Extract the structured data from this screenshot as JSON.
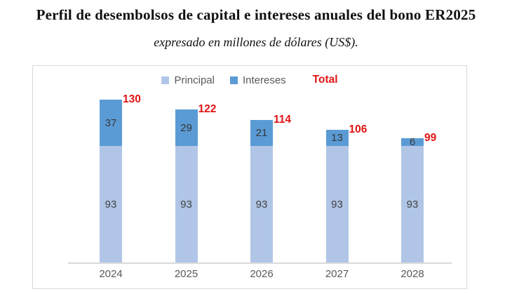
{
  "title": "Perfil de desembolsos de capital e intereses anuales del bono ER2025",
  "subtitle": "expresado en millones de dólares (US$).",
  "chart_data": {
    "type": "bar",
    "stacked": true,
    "title": "Perfil de desembolsos de capital e intereses anuales del bono ER2025",
    "subtitle": "expresado en millones de dólares (US$).",
    "categories": [
      "2024",
      "2025",
      "2026",
      "2027",
      "2028"
    ],
    "series": [
      {
        "name": "Principal",
        "values": [
          93,
          93,
          93,
          93,
          93
        ],
        "color": "#b1c6e7"
      },
      {
        "name": "Intereses",
        "values": [
          37,
          29,
          21,
          13,
          6
        ],
        "color": "#5b9bd5"
      }
    ],
    "totals": {
      "label": "Total",
      "values": [
        130,
        122,
        114,
        106,
        99
      ],
      "color": "#e11414"
    },
    "xlabel": "",
    "ylabel": "",
    "ylim": [
      0,
      140
    ],
    "grid": false,
    "legend_position": "top",
    "axis_line_color": "#d9d9d9",
    "label_color": "#404040",
    "tick_color": "#595959"
  }
}
